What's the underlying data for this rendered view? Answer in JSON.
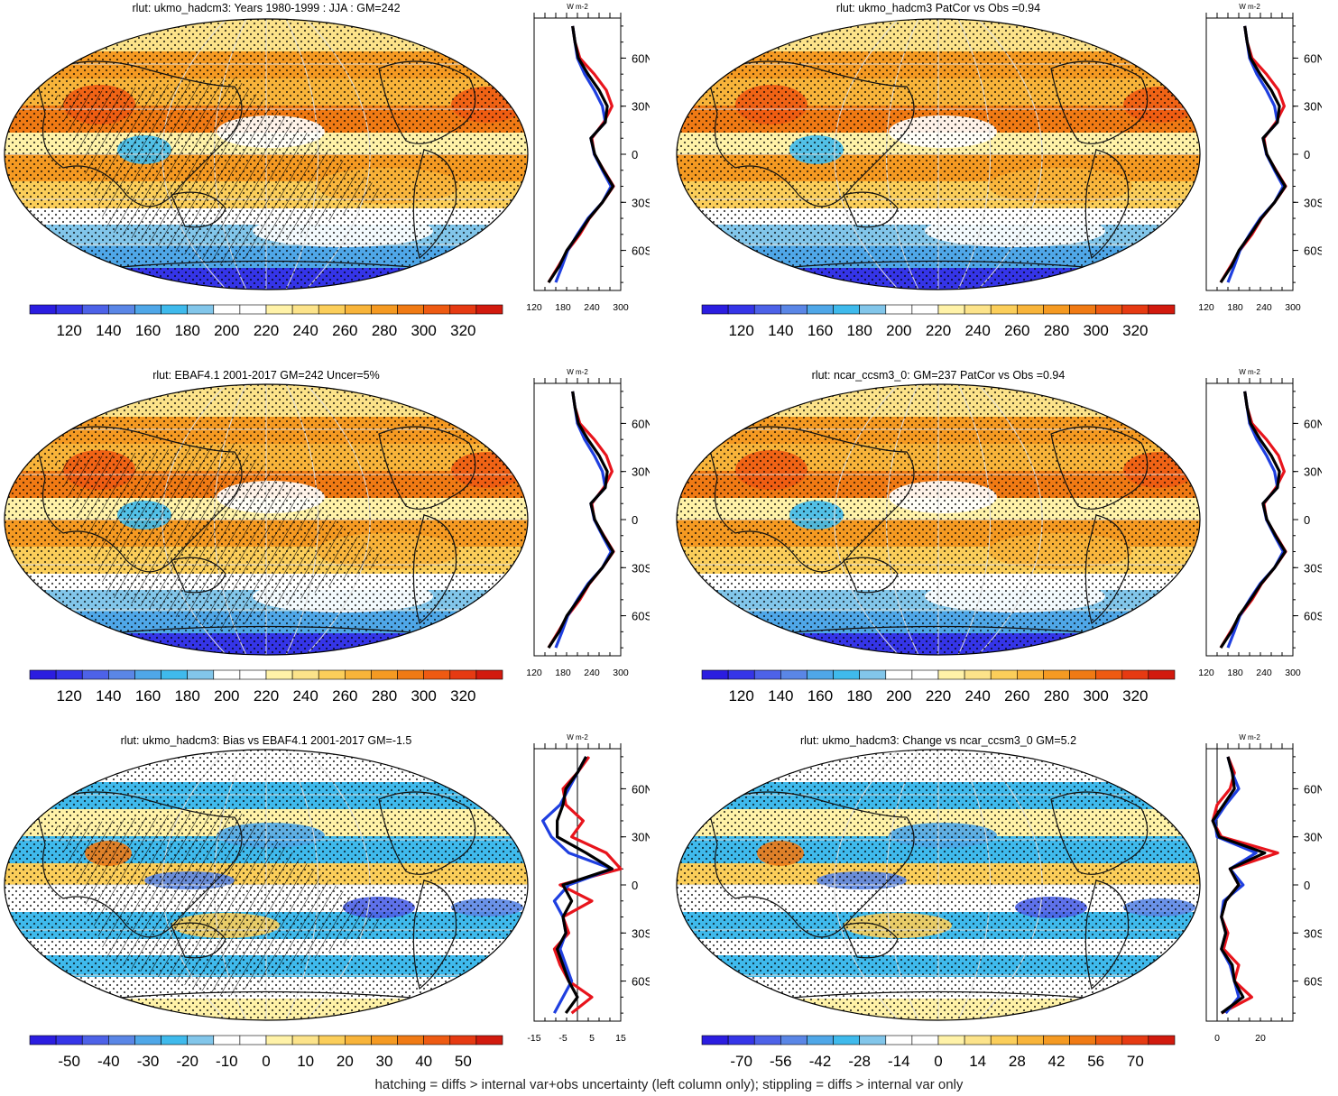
{
  "palette": [
    "#2b1de0",
    "#3535e8",
    "#4d62e8",
    "#5a86e6",
    "#4fa7e8",
    "#3fbaec",
    "#82c6ea",
    "#ffffff",
    "#ffffff",
    "#fff2a8",
    "#fce38a",
    "#fbce5a",
    "#f8b43a",
    "#f59a22",
    "#f07a14",
    "#ee5a12",
    "#e63a12",
    "#d21a0e"
  ],
  "chart_data": [
    {
      "type": "heatmap",
      "title": "rlut: ukmo_hadcm3: Years 1980-1999 : JJA : GM=242",
      "colorbar_labels": [
        "120",
        "140",
        "160",
        "180",
        "200",
        "220",
        "240",
        "260",
        "280",
        "300",
        "320"
      ],
      "zonal_xticks": [
        "120",
        "180",
        "240",
        "300"
      ],
      "zonal_xlim": [
        120,
        300
      ],
      "zonal_unit": "W m-2",
      "lat_labels": [
        "60N",
        "30N",
        "0",
        "30S",
        "60S"
      ],
      "series": [
        {
          "name": "red",
          "color": "#e8141c",
          "lat": [
            80,
            70,
            60,
            50,
            40,
            30,
            20,
            10,
            0,
            -10,
            -20,
            -30,
            -40,
            -50,
            -60,
            -70,
            -80
          ],
          "values": [
            200,
            205,
            215,
            245,
            270,
            282,
            265,
            240,
            245,
            265,
            285,
            262,
            235,
            215,
            190,
            170,
            150
          ]
        },
        {
          "name": "blue",
          "color": "#1f3fe0",
          "lat": [
            80,
            70,
            60,
            50,
            40,
            30,
            20,
            10,
            0,
            -10,
            -20,
            -30,
            -40,
            -50,
            -60,
            -70,
            -80
          ],
          "values": [
            200,
            205,
            210,
            225,
            245,
            262,
            268,
            238,
            245,
            262,
            280,
            262,
            232,
            210,
            190,
            178,
            165
          ]
        },
        {
          "name": "black",
          "color": "#000000",
          "lat": [
            80,
            70,
            60,
            50,
            40,
            30,
            20,
            10,
            0,
            -10,
            -20,
            -30,
            -40,
            -50,
            -60,
            -70,
            -80
          ],
          "values": [
            200,
            205,
            212,
            232,
            255,
            272,
            268,
            238,
            246,
            264,
            284,
            262,
            234,
            212,
            188,
            172,
            150
          ]
        }
      ]
    },
    {
      "type": "heatmap",
      "title": "rlut: ukmo_hadcm3 PatCor vs Obs =0.94",
      "colorbar_labels": [
        "120",
        "140",
        "160",
        "180",
        "200",
        "220",
        "240",
        "260",
        "280",
        "300",
        "320"
      ],
      "zonal_xticks": [
        "120",
        "180",
        "240",
        "300"
      ],
      "zonal_xlim": [
        120,
        300
      ],
      "zonal_unit": "W m-2",
      "lat_labels": [
        "60N",
        "30N",
        "0",
        "30S",
        "60S"
      ],
      "series": [
        {
          "name": "red",
          "color": "#e8141c",
          "lat": [
            80,
            70,
            60,
            50,
            40,
            30,
            20,
            10,
            0,
            -10,
            -20,
            -30,
            -40,
            -50,
            -60,
            -70,
            -80
          ],
          "values": [
            200,
            205,
            215,
            245,
            270,
            282,
            265,
            240,
            245,
            265,
            285,
            262,
            235,
            215,
            190,
            170,
            150
          ]
        },
        {
          "name": "blue",
          "color": "#1f3fe0",
          "lat": [
            80,
            70,
            60,
            50,
            40,
            30,
            20,
            10,
            0,
            -10,
            -20,
            -30,
            -40,
            -50,
            -60,
            -70,
            -80
          ],
          "values": [
            200,
            205,
            210,
            225,
            245,
            262,
            268,
            238,
            245,
            262,
            280,
            262,
            232,
            210,
            190,
            178,
            165
          ]
        },
        {
          "name": "black",
          "color": "#000000",
          "lat": [
            80,
            70,
            60,
            50,
            40,
            30,
            20,
            10,
            0,
            -10,
            -20,
            -30,
            -40,
            -50,
            -60,
            -70,
            -80
          ],
          "values": [
            200,
            205,
            212,
            232,
            255,
            272,
            268,
            238,
            246,
            264,
            284,
            262,
            234,
            212,
            188,
            172,
            150
          ]
        }
      ]
    },
    {
      "type": "heatmap",
      "title": "rlut: EBAF4.1 2001-2017 GM=242 Uncer=5%",
      "colorbar_labels": [
        "120",
        "140",
        "160",
        "180",
        "200",
        "220",
        "240",
        "260",
        "280",
        "300",
        "320"
      ],
      "zonal_xticks": [
        "120",
        "180",
        "240",
        "300"
      ],
      "zonal_xlim": [
        120,
        300
      ],
      "zonal_unit": "W m-2",
      "lat_labels": [
        "60N",
        "30N",
        "0",
        "30S",
        "60S"
      ],
      "series": [
        {
          "name": "red",
          "color": "#e8141c",
          "lat": [
            80,
            70,
            60,
            50,
            40,
            30,
            20,
            10,
            0,
            -10,
            -20,
            -30,
            -40,
            -50,
            -60,
            -70,
            -80
          ],
          "values": [
            200,
            205,
            215,
            245,
            270,
            282,
            265,
            240,
            245,
            265,
            285,
            262,
            235,
            215,
            190,
            170,
            150
          ]
        },
        {
          "name": "blue",
          "color": "#1f3fe0",
          "lat": [
            80,
            70,
            60,
            50,
            40,
            30,
            20,
            10,
            0,
            -10,
            -20,
            -30,
            -40,
            -50,
            -60,
            -70,
            -80
          ],
          "values": [
            200,
            205,
            210,
            225,
            245,
            262,
            268,
            238,
            245,
            262,
            280,
            262,
            232,
            210,
            190,
            178,
            165
          ]
        },
        {
          "name": "black",
          "color": "#000000",
          "lat": [
            80,
            70,
            60,
            50,
            40,
            30,
            20,
            10,
            0,
            -10,
            -20,
            -30,
            -40,
            -50,
            -60,
            -70,
            -80
          ],
          "values": [
            200,
            205,
            212,
            232,
            255,
            272,
            268,
            238,
            246,
            264,
            284,
            262,
            234,
            212,
            188,
            172,
            150
          ]
        }
      ]
    },
    {
      "type": "heatmap",
      "title": "rlut: ncar_ccsm3_0: GM=237 PatCor vs Obs =0.94",
      "colorbar_labels": [
        "120",
        "140",
        "160",
        "180",
        "200",
        "220",
        "240",
        "260",
        "280",
        "300",
        "320"
      ],
      "zonal_xticks": [
        "120",
        "180",
        "240",
        "300"
      ],
      "zonal_xlim": [
        120,
        300
      ],
      "zonal_unit": "W m-2",
      "lat_labels": [
        "60N",
        "30N",
        "0",
        "30S",
        "60S"
      ],
      "series": [
        {
          "name": "red",
          "color": "#e8141c",
          "lat": [
            80,
            70,
            60,
            50,
            40,
            30,
            20,
            10,
            0,
            -10,
            -20,
            -30,
            -40,
            -50,
            -60,
            -70,
            -80
          ],
          "values": [
            200,
            205,
            215,
            245,
            270,
            282,
            265,
            240,
            245,
            265,
            285,
            262,
            235,
            215,
            190,
            170,
            150
          ]
        },
        {
          "name": "blue",
          "color": "#1f3fe0",
          "lat": [
            80,
            70,
            60,
            50,
            40,
            30,
            20,
            10,
            0,
            -10,
            -20,
            -30,
            -40,
            -50,
            -60,
            -70,
            -80
          ],
          "values": [
            200,
            205,
            210,
            225,
            245,
            262,
            268,
            238,
            245,
            262,
            280,
            262,
            232,
            210,
            190,
            178,
            165
          ]
        },
        {
          "name": "black",
          "color": "#000000",
          "lat": [
            80,
            70,
            60,
            50,
            40,
            30,
            20,
            10,
            0,
            -10,
            -20,
            -30,
            -40,
            -50,
            -60,
            -70,
            -80
          ],
          "values": [
            200,
            205,
            212,
            232,
            255,
            272,
            268,
            238,
            246,
            264,
            284,
            262,
            234,
            212,
            188,
            172,
            150
          ]
        }
      ]
    },
    {
      "type": "heatmap",
      "title": "rlut: ukmo_hadcm3: Bias vs EBAF4.1 2001-2017 GM=-1.5",
      "colorbar_labels": [
        "-50",
        "-40",
        "-30",
        "-20",
        "-10",
        "0",
        "10",
        "20",
        "30",
        "40",
        "50"
      ],
      "zonal_xticks": [
        "-15",
        "-5",
        "5",
        "15"
      ],
      "zonal_xlim": [
        -15,
        15
      ],
      "zonal_unit": "W m-2",
      "lat_labels": [
        "60N",
        "30N",
        "0",
        "30S",
        "60S"
      ],
      "series": [
        {
          "name": "red",
          "color": "#e8141c",
          "lat": [
            80,
            70,
            60,
            50,
            40,
            30,
            20,
            10,
            0,
            -10,
            -20,
            -30,
            -40,
            -50,
            -60,
            -70,
            -80
          ],
          "values": [
            4,
            0,
            -5,
            -4,
            2,
            -2,
            10,
            15,
            -6,
            5,
            -5,
            -3,
            -8,
            -6,
            -3,
            5,
            -2
          ]
        },
        {
          "name": "blue",
          "color": "#1f3fe0",
          "lat": [
            80,
            70,
            60,
            50,
            40,
            30,
            20,
            10,
            0,
            -10,
            -20,
            -30,
            -40,
            -50,
            -60,
            -70,
            -80
          ],
          "values": [
            3,
            0,
            -3,
            -6,
            -12,
            -9,
            -3,
            12,
            -3,
            -8,
            -5,
            -4,
            -6,
            -4,
            -2,
            -5,
            -8
          ]
        },
        {
          "name": "black",
          "color": "#000000",
          "lat": [
            80,
            70,
            60,
            50,
            40,
            30,
            20,
            10,
            0,
            -10,
            -20,
            -30,
            -40,
            -50,
            -60,
            -70,
            -80
          ],
          "values": [
            3,
            0,
            -4,
            -5,
            -7,
            -7,
            3,
            12,
            -5,
            -2,
            -5,
            -4,
            -7,
            -5,
            -3,
            0,
            -4
          ]
        }
      ]
    },
    {
      "type": "heatmap",
      "title": "rlut: ukmo_hadcm3: Change vs ncar_ccsm3_0 GM=5.2",
      "colorbar_labels": [
        "-70",
        "-56",
        "-42",
        "-28",
        "-14",
        "0",
        "14",
        "28",
        "42",
        "56",
        "70"
      ],
      "zonal_xticks": [
        "0",
        "20"
      ],
      "zonal_xlim": [
        -5,
        35
      ],
      "zonal_unit": "W m-2",
      "lat_labels": [
        "60N",
        "30N",
        "0",
        "30S",
        "60S"
      ],
      "series": [
        {
          "name": "red",
          "color": "#e8141c",
          "lat": [
            80,
            70,
            60,
            50,
            40,
            30,
            20,
            10,
            0,
            -10,
            -20,
            -30,
            -40,
            -50,
            -60,
            -70,
            -80
          ],
          "values": [
            5,
            8,
            6,
            0,
            -2,
            2,
            28,
            6,
            10,
            4,
            2,
            5,
            3,
            10,
            8,
            16,
            2
          ]
        },
        {
          "name": "blue",
          "color": "#1f3fe0",
          "lat": [
            80,
            70,
            60,
            50,
            40,
            30,
            20,
            10,
            0,
            -10,
            -20,
            -30,
            -40,
            -50,
            -60,
            -70,
            -80
          ],
          "values": [
            5,
            7,
            10,
            4,
            -1,
            0,
            18,
            6,
            12,
            3,
            2,
            4,
            2,
            6,
            8,
            10,
            4
          ]
        },
        {
          "name": "black",
          "color": "#000000",
          "lat": [
            80,
            70,
            60,
            50,
            40,
            30,
            20,
            10,
            0,
            -10,
            -20,
            -30,
            -40,
            -50,
            -60,
            -70,
            -80
          ],
          "values": [
            5,
            7,
            8,
            3,
            -2,
            1,
            22,
            6,
            10,
            4,
            2,
            4,
            2,
            7,
            8,
            12,
            2
          ]
        }
      ]
    }
  ],
  "footer": "hatching = diffs > internal var+obs uncertainty (left column only); stippling = diffs > internal var only"
}
